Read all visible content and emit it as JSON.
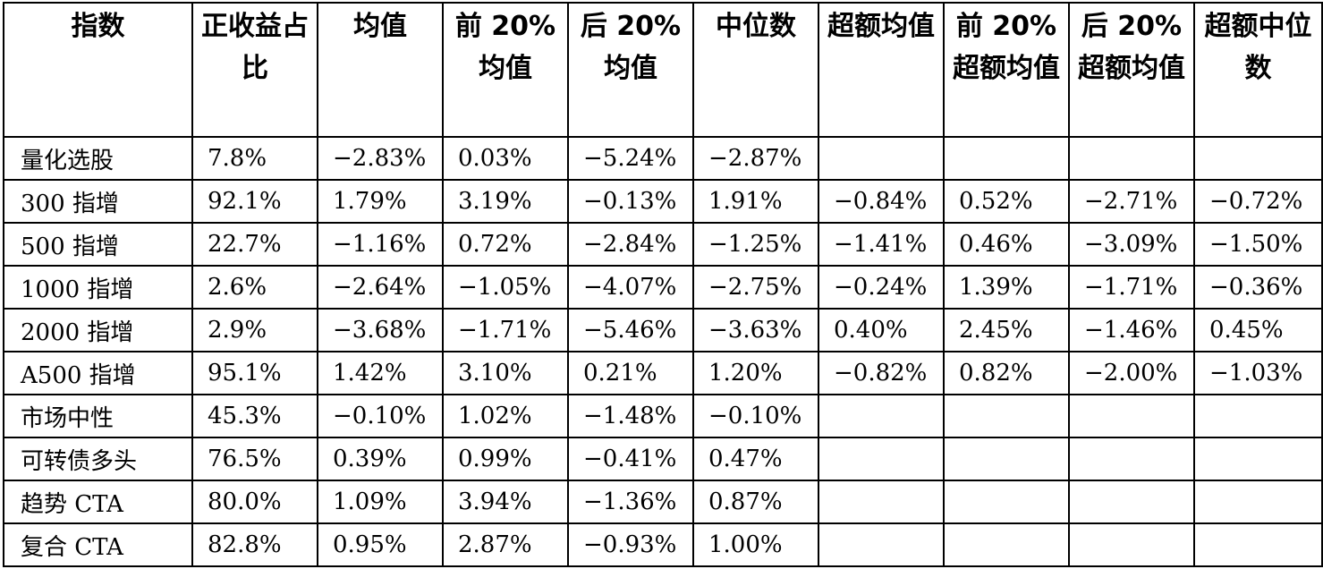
{
  "table": {
    "headers": [
      "指数",
      "正收益占比",
      "均值",
      "前 20%均值",
      "后 20%均值",
      "中位数",
      "超额均值",
      "前 20%超额均值",
      "后 20%超额均值",
      "超额中位数"
    ],
    "rows": [
      [
        "量化选股",
        "7.8%",
        "−2.83%",
        "0.03%",
        "−5.24%",
        "−2.87%",
        "",
        "",
        "",
        ""
      ],
      [
        "300 指增",
        "92.1%",
        "1.79%",
        "3.19%",
        "−0.13%",
        "1.91%",
        "−0.84%",
        "0.52%",
        "−2.71%",
        "−0.72%"
      ],
      [
        "500 指增",
        "22.7%",
        "−1.16%",
        "0.72%",
        "−2.84%",
        "−1.25%",
        "−1.41%",
        "0.46%",
        "−3.09%",
        "−1.50%"
      ],
      [
        "1000 指增",
        "2.6%",
        "−2.64%",
        "−1.05%",
        "−4.07%",
        "−2.75%",
        "−0.24%",
        "1.39%",
        "−1.71%",
        "−0.36%"
      ],
      [
        "2000 指增",
        "2.9%",
        "−3.68%",
        "−1.71%",
        "−5.46%",
        "−3.63%",
        "0.40%",
        "2.45%",
        "−1.46%",
        "0.45%"
      ],
      [
        "A500 指增",
        "95.1%",
        "1.42%",
        "3.10%",
        "0.21%",
        "1.20%",
        "−0.82%",
        "0.82%",
        "−2.00%",
        "−1.03%"
      ],
      [
        "市场中性",
        "45.3%",
        "−0.10%",
        "1.02%",
        "−1.48%",
        "−0.10%",
        "",
        "",
        "",
        ""
      ],
      [
        "可转债多头",
        "76.5%",
        "0.39%",
        "0.99%",
        "−0.41%",
        "0.47%",
        "",
        "",
        "",
        ""
      ],
      [
        "趋势 CTA",
        "80.0%",
        "1.09%",
        "3.94%",
        "−1.36%",
        "0.87%",
        "",
        "",
        "",
        ""
      ],
      [
        "复合 CTA",
        "82.8%",
        "0.95%",
        "2.87%",
        "−0.93%",
        "1.00%",
        "",
        "",
        "",
        ""
      ]
    ]
  }
}
